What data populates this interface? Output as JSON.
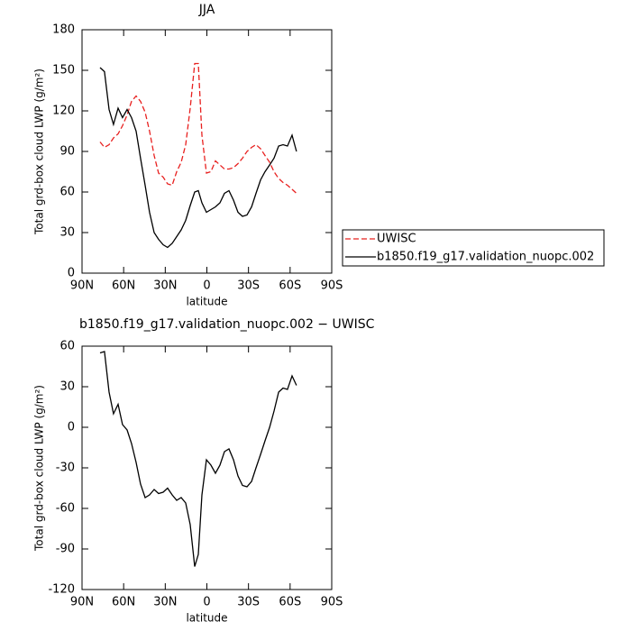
{
  "chart_data": [
    {
      "type": "line",
      "title": "JJA",
      "xlabel": "latitude",
      "ylabel": "Total grd-box cloud LWP (g/m²)",
      "x": [
        77.0,
        73.8,
        70.5,
        67.3,
        64.0,
        60.8,
        57.5,
        54.3,
        51.0,
        47.8,
        44.5,
        41.3,
        38.0,
        34.8,
        31.5,
        28.3,
        25.0,
        21.8,
        18.5,
        15.3,
        12.0,
        8.8,
        6.2,
        3.6,
        0.3,
        -2.9,
        -6.2,
        -9.4,
        -12.7,
        -15.9,
        -19.2,
        -22.4,
        -25.7,
        -28.9,
        -32.2,
        -35.4,
        -38.7,
        -41.9,
        -45.2,
        -48.4,
        -51.7,
        -54.9,
        -58.1,
        -61.4,
        -64.6
      ],
      "series": [
        {
          "name": "UWISC",
          "color": "#e8201f",
          "line_style": "dashed",
          "values": [
            97,
            93,
            95,
            100,
            103,
            109,
            117,
            127,
            131,
            127,
            119,
            105,
            87,
            74,
            71,
            66,
            65,
            75,
            82,
            95,
            122,
            155,
            155,
            102,
            74,
            75,
            83,
            80,
            77,
            77,
            78,
            81,
            85,
            90,
            93,
            95,
            92,
            87,
            82,
            75,
            70,
            67,
            65,
            62,
            59
          ]
        },
        {
          "name": "b1850.f19_g17.validation_nuopc.002",
          "color": "#000000",
          "line_style": "solid",
          "values": [
            152,
            149,
            121,
            110,
            122,
            115,
            121,
            115,
            105,
            85,
            65,
            45,
            30,
            25,
            21,
            19,
            22,
            27,
            32,
            39,
            50,
            60,
            61,
            52,
            45,
            47,
            49,
            52,
            59,
            61,
            54,
            45,
            42,
            43,
            49,
            59,
            69,
            75,
            80,
            85,
            94,
            95,
            94,
            102,
            90
          ]
        }
      ],
      "xlim": [
        90,
        -90
      ],
      "xticks": [
        {
          "value": 90,
          "label": "90N"
        },
        {
          "value": 60,
          "label": "60N"
        },
        {
          "value": 30,
          "label": "30N"
        },
        0,
        {
          "value": -30,
          "label": "30S"
        },
        {
          "value": -60,
          "label": "60S"
        },
        {
          "value": -90,
          "label": "90S"
        }
      ],
      "ylim": [
        0,
        180
      ],
      "yticks": [
        0,
        30,
        60,
        90,
        120,
        150,
        180
      ],
      "legend": "right"
    },
    {
      "type": "line",
      "title": "b1850.f19_g17.validation_nuopc.002 − UWISC",
      "xlabel": "latitude",
      "ylabel": "Total grd-box cloud LWP (g/m²)",
      "x": [
        77.0,
        73.8,
        70.5,
        67.3,
        64.0,
        60.8,
        57.5,
        54.3,
        51.0,
        47.8,
        44.5,
        41.3,
        38.0,
        34.8,
        31.5,
        28.3,
        25.0,
        21.8,
        18.5,
        15.3,
        12.0,
        8.8,
        6.2,
        3.6,
        0.3,
        -2.9,
        -6.2,
        -9.4,
        -12.7,
        -15.9,
        -19.2,
        -22.4,
        -25.7,
        -28.9,
        -32.2,
        -35.4,
        -38.7,
        -41.9,
        -45.2,
        -48.4,
        -51.7,
        -54.9,
        -58.1,
        -61.4,
        -64.6
      ],
      "values": [
        55,
        56,
        26,
        10,
        17,
        2,
        -2,
        -12,
        -26,
        -42,
        -52,
        -50,
        -46,
        -49,
        -48,
        -45,
        -50,
        -54,
        -52,
        -56,
        -72,
        -103,
        -94,
        -50,
        -24,
        -28,
        -34,
        -28,
        -18,
        -16,
        -24,
        -36,
        -43,
        -44,
        -40,
        -30,
        -20,
        -10,
        0,
        12,
        26,
        29,
        28,
        38,
        31
      ],
      "color": "#000000",
      "xlim": [
        90,
        -90
      ],
      "xticks": [
        {
          "value": 90,
          "label": "90N"
        },
        {
          "value": 60,
          "label": "60N"
        },
        {
          "value": 30,
          "label": "30N"
        },
        0,
        {
          "value": -30,
          "label": "30S"
        },
        {
          "value": -60,
          "label": "60S"
        },
        {
          "value": -90,
          "label": "90S"
        }
      ],
      "ylim": [
        -120,
        60
      ],
      "yticks": [
        -120,
        -90,
        -60,
        -30,
        0,
        30,
        60
      ]
    }
  ]
}
